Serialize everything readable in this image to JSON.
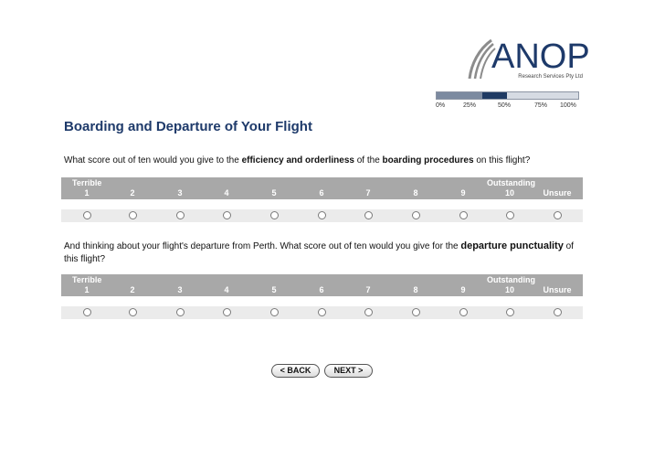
{
  "brand": {
    "name": "ANOP",
    "subtitle": "Research Services Pty Ltd"
  },
  "progress": {
    "value_percent": 50,
    "ticks": [
      "0%",
      "25%",
      "50%",
      "75%",
      "100%"
    ]
  },
  "page_title": "Boarding and Departure of Your Flight",
  "question1": {
    "pre": "What score out of ten would you give to the ",
    "b1": "efficiency and orderliness",
    "mid1": " of the ",
    "b2": "boarding procedures",
    "post": " on this flight?"
  },
  "question2": {
    "pre": "And thinking about your flight's departure from Perth. What score out of ten would you give for the ",
    "b1": "departure punctuality",
    "post": " of this flight?"
  },
  "scale": {
    "low_label": "Terrible",
    "high_label": "Outstanding",
    "options": [
      "1",
      "2",
      "3",
      "4",
      "5",
      "6",
      "7",
      "8",
      "9",
      "10",
      "Unsure"
    ]
  },
  "nav": {
    "back": "< BACK",
    "next": "NEXT >"
  }
}
